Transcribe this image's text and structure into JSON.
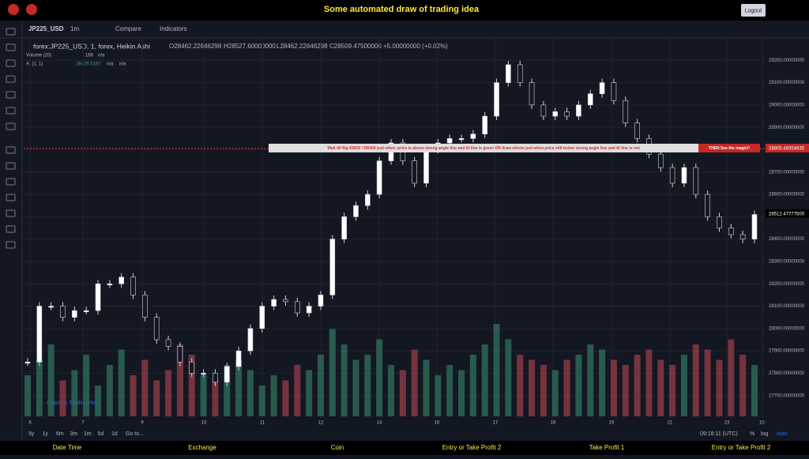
{
  "header": {
    "title": "Some automated draw of trading idea",
    "logout": "Logout"
  },
  "toolbar": {
    "symbol": "JP225_USD",
    "interval": "1m",
    "compare": "Compare",
    "indicators": "Indicators"
  },
  "chart": {
    "legend": {
      "name": "forex:JP225_USD, 1, forex, Heikin Ashi",
      "open": "O28462.22646298",
      "high": "H28527.60000000",
      "low": "L28462.22646298",
      "close": "C28509.47500000",
      "change": "+5.00000000 (+0.02%)",
      "volume_name": "Volume (20)",
      "volume_value": "166",
      "volume_na": "n/a",
      "ai_name": "AI (1, 1)",
      "ai_value": "28429.5197",
      "ai_na1": "n/a",
      "ai_na2": "n/a"
    },
    "ylim": [
      27600,
      29300
    ],
    "yticks": [
      {
        "value": 29200,
        "label": "29200.00000000"
      },
      {
        "value": 29100,
        "label": "29100.00000000"
      },
      {
        "value": 29000,
        "label": "29000.00000000"
      },
      {
        "value": 28900,
        "label": "28900.00000000"
      },
      {
        "value": 28800,
        "label": "28800.00000000"
      },
      {
        "value": 28700,
        "label": "28700.00000000"
      },
      {
        "value": 28600,
        "label": "28600.00000000"
      },
      {
        "value": 28500,
        "label": "28500.00000000"
      },
      {
        "value": 28400,
        "label": "28400.00000000"
      },
      {
        "value": 28300,
        "label": "28300.00000000"
      },
      {
        "value": 28200,
        "label": "28200.00000000"
      },
      {
        "value": 28100,
        "label": "28100.00000000"
      },
      {
        "value": 28000,
        "label": "28000.00000000"
      },
      {
        "value": 27900,
        "label": "27900.00000000"
      },
      {
        "value": 27800,
        "label": "27800.00000000"
      },
      {
        "value": 27700,
        "label": "27700.00000000"
      }
    ],
    "x_labels": [
      "6",
      "7",
      "9",
      "10",
      "11",
      "12",
      "14",
      "16",
      "17",
      "18",
      "19",
      "21",
      "23",
      "10:"
    ],
    "closes": [
      27850,
      28100,
      28100,
      28050,
      28080,
      28080,
      28200,
      28200,
      28230,
      28150,
      28050,
      27950,
      27920,
      27850,
      27800,
      27800,
      27760,
      27830,
      27900,
      28000,
      28100,
      28130,
      28120,
      28070,
      28100,
      28150,
      28400,
      28500,
      28550,
      28600,
      28750,
      28830,
      28750,
      28650,
      28800,
      28830,
      28850,
      28850,
      28870,
      28950,
      29100,
      29180,
      29100,
      29000,
      28950,
      28970,
      28950,
      29000,
      29050,
      29100,
      29020,
      28920,
      28850,
      28780,
      28720,
      28650,
      28720,
      28600,
      28500,
      28450,
      28420,
      28400,
      28510
    ],
    "volumes": [
      40,
      55,
      70,
      35,
      45,
      60,
      30,
      50,
      65,
      40,
      55,
      35,
      45,
      70,
      60,
      40,
      35,
      50,
      55,
      45,
      30,
      40,
      35,
      50,
      45,
      60,
      85,
      70,
      55,
      60,
      75,
      50,
      45,
      65,
      55,
      40,
      50,
      45,
      60,
      70,
      90,
      75,
      60,
      55,
      50,
      45,
      55,
      60,
      70,
      65,
      55,
      50,
      60,
      65,
      55,
      50,
      60,
      70,
      65,
      55,
      75,
      60,
      50
    ],
    "signal_line": 28805.48354935,
    "banner_text": "Wait till flip ENDS !  DRAW just when:  price is above strong angle line and AI line is green        OR        draw shorts just when price still below strong angle line and AI line is red",
    "banner_magic": "THEN See the magic!!",
    "last_price": {
      "value": 28512.477775,
      "label": "28512.47777500"
    },
    "watermark": "Chart by TradingView"
  },
  "bottom_bar": {
    "ranges": [
      "5y",
      "1y",
      "6m",
      "3m",
      "1m",
      "5d",
      "1d"
    ],
    "goto": "Go to...",
    "time": "09:18:11 (UTC)",
    "percent": "%",
    "log": "log",
    "auto": "auto"
  },
  "footer": [
    "Date Time",
    "Exchange",
    "Coin",
    "Entry or Take Profit 2",
    "Take Profit 1",
    "Entry or Take Profit 2"
  ]
}
